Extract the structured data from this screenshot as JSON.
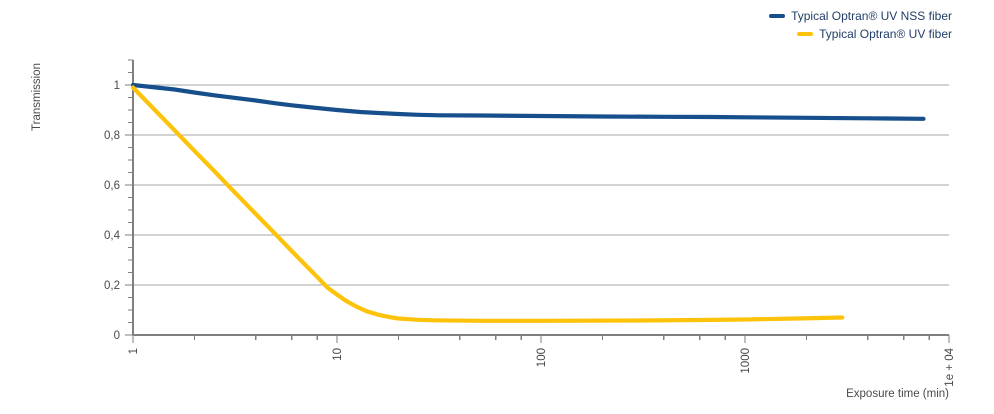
{
  "chart_data": {
    "type": "line",
    "title": "",
    "xlabel": "Exposure time (min)",
    "ylabel": "Transmission",
    "x_scale": "log",
    "xlim": [
      1,
      10000
    ],
    "ylim": [
      0,
      1.1
    ],
    "grid": "horizontal-only",
    "legend_position": "top-right",
    "x_ticks_major": {
      "values": [
        1,
        10,
        100,
        1000,
        10000
      ],
      "labels": [
        "1",
        "10",
        "100",
        "1000",
        "1e + 04"
      ]
    },
    "x_ticks_minor": [
      2,
      4,
      6,
      8,
      20,
      40,
      60,
      80,
      200,
      400,
      600,
      800,
      2000,
      4000,
      6000,
      8000
    ],
    "y_ticks_major": {
      "values": [
        0,
        0.2,
        0.4,
        0.6,
        0.8,
        1
      ],
      "labels": [
        "0",
        "0,2",
        "0,4",
        "0,6",
        "0,8",
        "1"
      ]
    },
    "y_ticks_minor": [
      0.05,
      0.1,
      0.15,
      0.25,
      0.3,
      0.35,
      0.45,
      0.5,
      0.55,
      0.65,
      0.7,
      0.75,
      0.85,
      0.9,
      0.95,
      1.05,
      1.1
    ],
    "grid_y_values": [
      0.2,
      0.4,
      0.6,
      0.8,
      1.0
    ],
    "colors": {
      "grid": "#a6a6a6",
      "axis": "#7f7f7f",
      "tick_text": "#4a4a47",
      "legend_text": "#223e68"
    },
    "series": [
      {
        "name": "Typical Optran® UV NSS fiber",
        "color": "#164f8b",
        "points": [
          [
            1,
            1.0
          ],
          [
            1.3,
            0.99
          ],
          [
            1.6,
            0.982
          ],
          [
            2,
            0.97
          ],
          [
            2.5,
            0.959
          ],
          [
            3,
            0.951
          ],
          [
            4,
            0.938
          ],
          [
            5,
            0.927
          ],
          [
            6,
            0.919
          ],
          [
            8,
            0.908
          ],
          [
            10,
            0.9
          ],
          [
            13,
            0.892
          ],
          [
            16,
            0.888
          ],
          [
            20,
            0.884
          ],
          [
            25,
            0.881
          ],
          [
            32,
            0.879
          ],
          [
            50,
            0.878
          ],
          [
            100,
            0.876
          ],
          [
            200,
            0.874
          ],
          [
            400,
            0.873
          ],
          [
            700,
            0.872
          ],
          [
            1000,
            0.871
          ],
          [
            2000,
            0.869
          ],
          [
            4000,
            0.867
          ],
          [
            7500,
            0.865
          ]
        ]
      },
      {
        "name": "Typical Optran® UV fiber",
        "color": "#fdc30b",
        "points": [
          [
            1,
            0.99
          ],
          [
            1.5,
            0.842
          ],
          [
            2,
            0.737
          ],
          [
            2.5,
            0.656
          ],
          [
            3,
            0.589
          ],
          [
            4,
            0.484
          ],
          [
            5,
            0.403
          ],
          [
            6,
            0.336
          ],
          [
            7,
            0.28
          ],
          [
            8,
            0.232
          ],
          [
            9,
            0.189
          ],
          [
            10,
            0.162
          ],
          [
            11,
            0.138
          ],
          [
            12.5,
            0.113
          ],
          [
            14,
            0.095
          ],
          [
            16,
            0.081
          ],
          [
            18,
            0.072
          ],
          [
            20,
            0.066
          ],
          [
            25,
            0.061
          ],
          [
            30,
            0.059
          ],
          [
            50,
            0.057
          ],
          [
            100,
            0.057
          ],
          [
            300,
            0.058
          ],
          [
            600,
            0.06
          ],
          [
            1000,
            0.062
          ],
          [
            1800,
            0.066
          ],
          [
            3000,
            0.07
          ]
        ]
      }
    ]
  }
}
